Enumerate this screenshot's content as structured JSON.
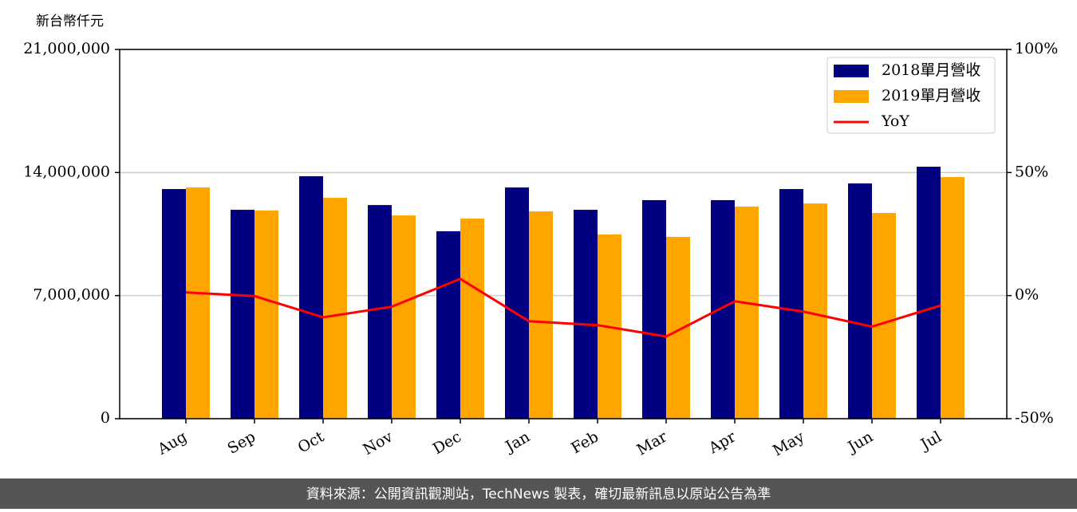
{
  "chart_data": {
    "type": "bar-line",
    "y_label": "新台幣仟元",
    "categories": [
      "Aug",
      "Sep",
      "Oct",
      "Nov",
      "Dec",
      "Jan",
      "Feb",
      "Mar",
      "Apr",
      "May",
      "Jun",
      "Jul"
    ],
    "series": [
      {
        "name": "2018單月營收",
        "color": "#000080",
        "type": "bar",
        "values": [
          13060000,
          11880000,
          13790000,
          12150000,
          10660000,
          13150000,
          11880000,
          12430000,
          12430000,
          13060000,
          13380000,
          14330000
        ]
      },
      {
        "name": "2019單月營收",
        "color": "#ffa500",
        "type": "bar",
        "values": [
          13150000,
          11840000,
          12560000,
          11560000,
          11380000,
          11790000,
          10480000,
          10340000,
          12060000,
          12240000,
          11700000,
          13740000
        ]
      },
      {
        "name": "YoY",
        "color": "#ff0000",
        "type": "line",
        "axis": "y2",
        "values": [
          1.3,
          -0.2,
          -8.8,
          -4.5,
          6.8,
          -10.4,
          -12,
          -16.6,
          -2.3,
          -6.5,
          -12.6,
          -4
        ]
      }
    ],
    "ylim": [
      0,
      21000000
    ],
    "yticks": [
      0,
      {
        "value": 7000000,
        "label": "7,000,000"
      },
      {
        "value": 14000000,
        "label": "14,000,000"
      },
      {
        "value": 21000000,
        "label": "21,000,000"
      }
    ],
    "y2lim": [
      -50,
      100
    ],
    "y2ticks": [
      {
        "value": -50,
        "label": "-50%"
      },
      {
        "value": 0,
        "label": "0%"
      },
      {
        "value": 50,
        "label": "50%"
      },
      {
        "value": 100,
        "label": "100%"
      }
    ],
    "grid": true,
    "legend": "upper right"
  },
  "footer": "資料來源：公開資訊觀測站，TechNews 製表，確切最新訊息以原站公告為準"
}
